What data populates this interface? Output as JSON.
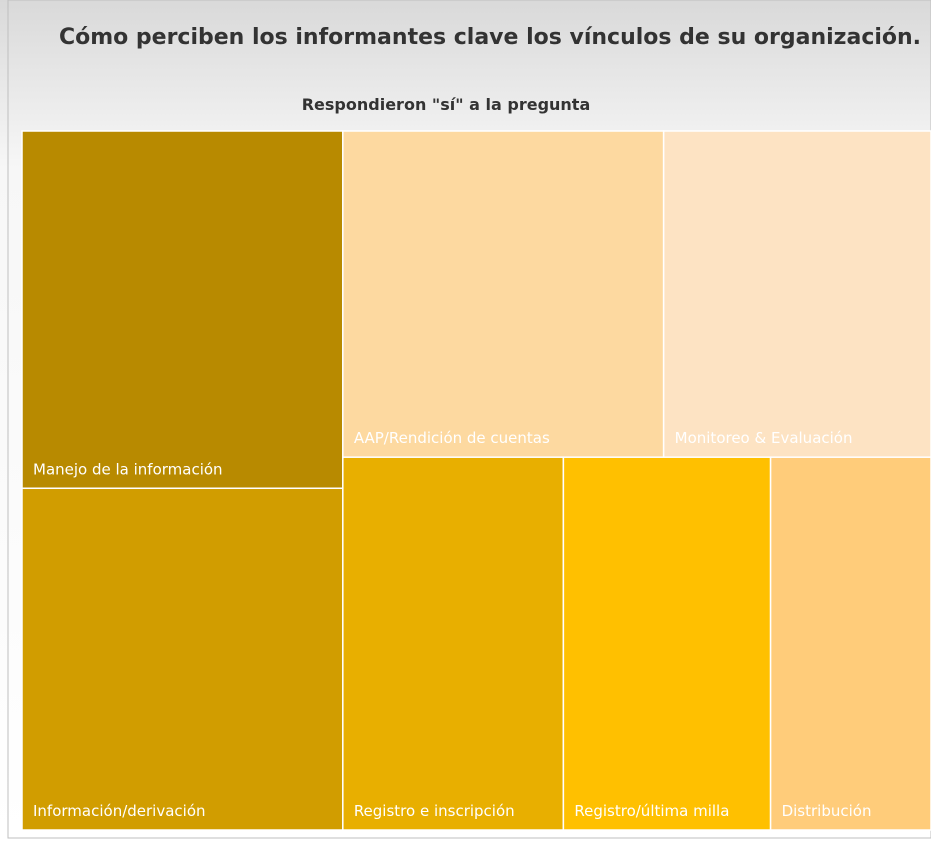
{
  "chart_data": {
    "type": "treemap",
    "title": "Cómo perciben los informantes clave los vínculos de su organización.",
    "subtitle": "Respondieron \"sí\" a la pregunta",
    "categories": [
      "Manejo de la información",
      "Información/derivación",
      "AAP/Rendición de cuentas",
      "Monitoreo & Evaluación",
      "Registro e inscripción",
      "Registro/última milla",
      "Distribución"
    ],
    "values": [
      23,
      22,
      21,
      17.5,
      16.5,
      15.5,
      12
    ],
    "colors": [
      "#b88a00",
      "#d19d00",
      "#fdd9a0",
      "#fde3c3",
      "#e8af00",
      "#ffc000",
      "#ffcc7a"
    ]
  }
}
